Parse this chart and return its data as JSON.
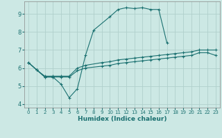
{
  "xlabel": "Humidex (Indice chaleur)",
  "background_color": "#cce8e4",
  "grid_color": "#b0d0cc",
  "line_color": "#1a7070",
  "xlim": [
    -0.5,
    23.5
  ],
  "ylim": [
    3.8,
    9.7
  ],
  "yticks": [
    4,
    5,
    6,
    7,
    8,
    9
  ],
  "xticks": [
    0,
    1,
    2,
    3,
    4,
    5,
    6,
    7,
    8,
    9,
    10,
    11,
    12,
    13,
    14,
    15,
    16,
    17,
    18,
    19,
    20,
    21,
    22,
    23
  ],
  "series": [
    {
      "x": [
        0,
        1,
        2,
        3,
        4,
        5,
        6,
        7,
        8,
        10,
        11,
        12,
        13,
        14,
        15,
        16,
        17
      ],
      "y": [
        6.3,
        5.9,
        5.5,
        5.5,
        5.1,
        4.35,
        4.85,
        6.7,
        8.1,
        8.85,
        9.25,
        9.35,
        9.3,
        9.35,
        9.25,
        9.25,
        7.4
      ]
    },
    {
      "x": [
        0,
        1,
        2,
        3,
        4,
        5,
        6,
        7,
        9,
        10,
        11,
        12,
        13,
        14,
        15,
        16,
        17,
        18,
        19,
        20,
        21,
        22,
        23
      ],
      "y": [
        6.3,
        5.9,
        5.55,
        5.55,
        5.55,
        5.55,
        6.0,
        6.15,
        6.3,
        6.35,
        6.45,
        6.5,
        6.55,
        6.6,
        6.65,
        6.7,
        6.75,
        6.8,
        6.85,
        6.9,
        7.0,
        7.0,
        7.0
      ]
    },
    {
      "x": [
        0,
        1,
        2,
        3,
        4,
        5,
        6,
        7,
        9,
        10,
        11,
        12,
        13,
        14,
        15,
        16,
        17,
        18,
        19,
        20,
        21,
        22,
        23
      ],
      "y": [
        6.3,
        5.9,
        5.5,
        5.5,
        5.5,
        5.5,
        5.85,
        6.0,
        6.1,
        6.15,
        6.25,
        6.3,
        6.35,
        6.4,
        6.45,
        6.5,
        6.55,
        6.6,
        6.65,
        6.7,
        6.85,
        6.85,
        6.7
      ]
    }
  ]
}
